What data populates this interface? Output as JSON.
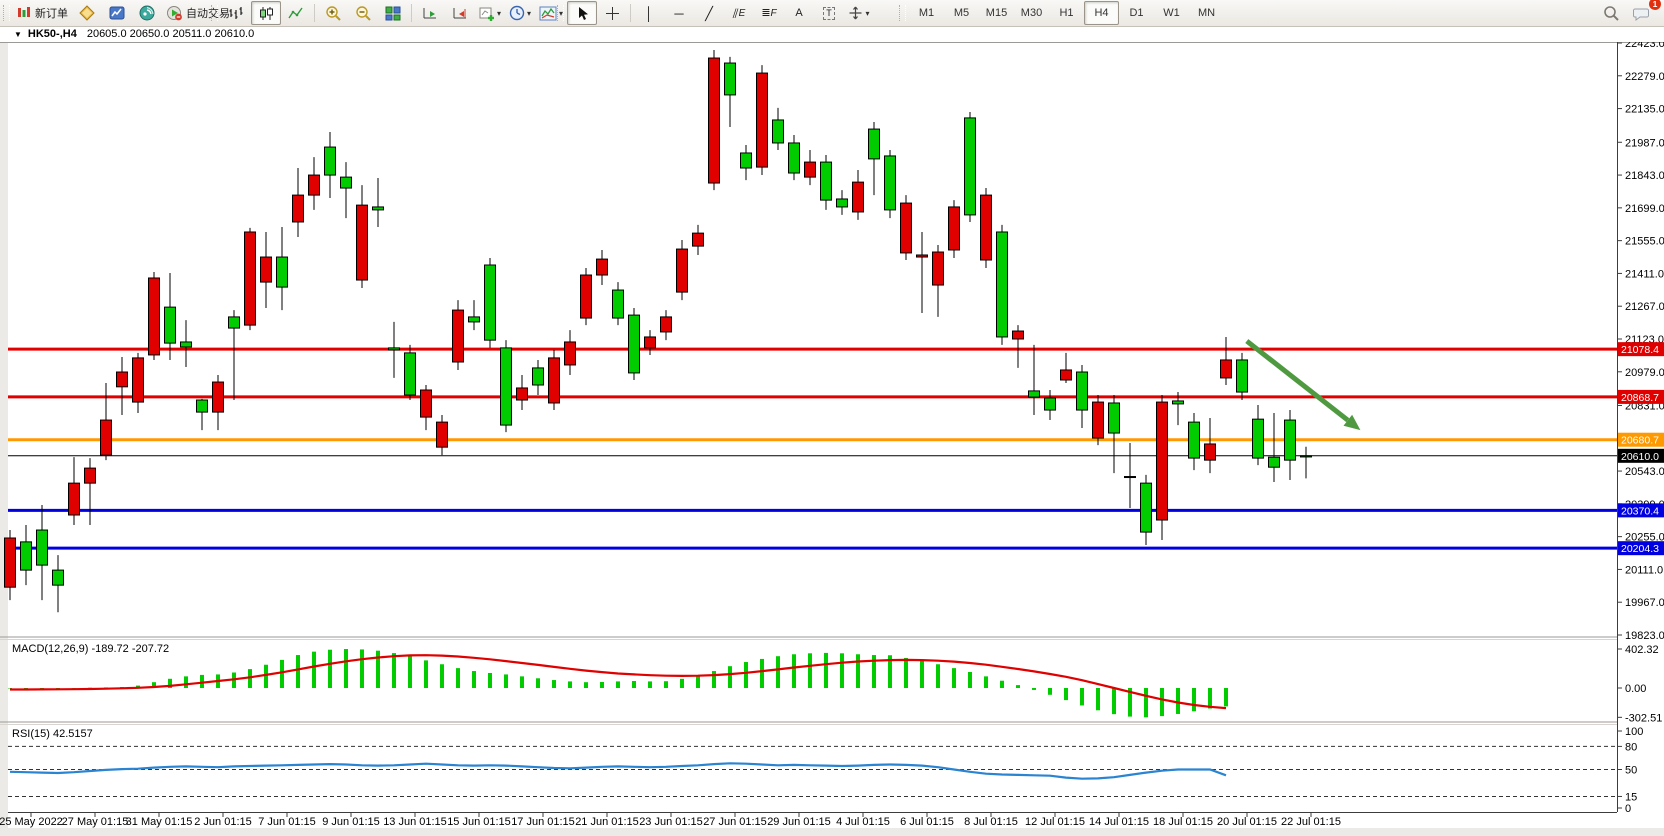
{
  "toolbar": {
    "new_order": "新订单",
    "autotrade": "自动交易",
    "timeframes": [
      "M1",
      "M5",
      "M15",
      "M30",
      "H1",
      "H4",
      "D1",
      "W1",
      "MN"
    ],
    "active_timeframe": "H4",
    "notification_count": "1",
    "glyphs": {
      "caret": "▾",
      "collapse": "▼",
      "crosshair": "┼",
      "vline": "│",
      "hline": "─",
      "trendline": "╱",
      "channel": "⫽",
      "channel_letter": "E",
      "fibo": "≣",
      "fibo_letter": "F",
      "text_tool": "A",
      "label_tool": "T"
    }
  },
  "chart_header": {
    "collapse_glyph": "▼",
    "symbol": "HK50-,H4",
    "ohlc": "20605.0 20650.0 20511.0 20610.0"
  },
  "chart_data": {
    "type": "candlestick",
    "symbol": "HK50-",
    "timeframe": "H4",
    "title": "HK50-,H4  20605.0 20650.0 20511.0 20610.0",
    "price_axis": {
      "min": 19823.0,
      "max": 22423.0,
      "ticks": [
        22423.0,
        22279.0,
        22135.0,
        21987.0,
        21843.0,
        21699.0,
        21555.0,
        21411.0,
        21267.0,
        21123.0,
        20979.0,
        20831.0,
        20687.0,
        20543.0,
        20399.0,
        20255.0,
        20111.0,
        19967.0,
        19823.0
      ]
    },
    "x_labels": [
      "25 May 2022",
      "27 May 01:15",
      "31 May 01:15",
      "2 Jun 01:15",
      "7 Jun 01:15",
      "9 Jun 01:15",
      "13 Jun 01:15",
      "15 Jun 01:15",
      "17 Jun 01:15",
      "21 Jun 01:15",
      "23 Jun 01:15",
      "27 Jun 01:15",
      "29 Jun 01:15",
      "4 Jul 01:15",
      "6 Jul 01:15",
      "8 Jul 01:15",
      "12 Jul 01:15",
      "14 Jul 01:15",
      "18 Jul 01:15",
      "20 Jul 01:15",
      "22 Jul 01:15"
    ],
    "colors": {
      "bull": "#00CC00",
      "bear": "#E00000",
      "wick": "#000000",
      "resistance": "#E00000",
      "orange_line": "#FF9900",
      "blue_line": "#0000E0",
      "current_price_line": "#000000",
      "macd_hist": "#00CC00",
      "macd_signal": "#E00000",
      "rsi_line": "#2A84D2",
      "arrow": "#4F9A41"
    },
    "h_lines": [
      {
        "price": 21078.4,
        "badge": "21078.4",
        "color": "#E00000",
        "width": 3
      },
      {
        "price": 20868.7,
        "badge": "20868.7",
        "color": "#E00000",
        "width": 3
      },
      {
        "price": 20680.7,
        "badge": "20680.7",
        "color": "#FF9900",
        "width": 3
      },
      {
        "price": 20370.4,
        "badge": "20370.4",
        "color": "#0000E0",
        "width": 3
      },
      {
        "price": 20204.3,
        "badge": "20204.3",
        "color": "#0000E0",
        "width": 3
      }
    ],
    "current_price": {
      "price": 20610.0,
      "badge": "20610.0",
      "color": "#000000"
    },
    "annotation_arrow": {
      "from_bar": 77.3,
      "from_price": 21114,
      "to_bar": 84.4,
      "to_price": 20723
    },
    "candles_ohlc": [
      [
        20249,
        20284,
        19976,
        20033
      ],
      [
        20108,
        20306,
        20042,
        20232
      ],
      [
        20130,
        20394,
        19976,
        20284
      ],
      [
        20042,
        20174,
        19923,
        20108
      ],
      [
        20490,
        20604,
        20306,
        20350
      ],
      [
        20556,
        20600,
        20306,
        20490
      ],
      [
        20767,
        20930,
        20591,
        20613
      ],
      [
        20978,
        21044,
        20789,
        20913
      ],
      [
        21040,
        21062,
        20798,
        20846
      ],
      [
        21391,
        21417,
        21031,
        21053
      ],
      [
        21105,
        21413,
        21031,
        21263
      ],
      [
        21088,
        21206,
        21000,
        21110
      ],
      [
        20802,
        20860,
        20723,
        20855
      ],
      [
        20934,
        20965,
        20723,
        20802
      ],
      [
        21171,
        21250,
        20855,
        21220
      ],
      [
        21593,
        21611,
        21162,
        21184
      ],
      [
        21483,
        21593,
        21259,
        21373
      ],
      [
        21351,
        21615,
        21250,
        21483
      ],
      [
        21755,
        21874,
        21571,
        21637
      ],
      [
        21843,
        21922,
        21690,
        21755
      ],
      [
        21843,
        22032,
        21742,
        21966
      ],
      [
        21786,
        21900,
        21654,
        21834
      ],
      [
        21711,
        21799,
        21347,
        21382
      ],
      [
        21690,
        21830,
        21615,
        21703
      ],
      [
        21075,
        21198,
        20952,
        21084
      ],
      [
        20877,
        21097,
        20855,
        21062
      ],
      [
        20899,
        20921,
        20723,
        20780
      ],
      [
        20758,
        20789,
        20613,
        20648
      ],
      [
        21250,
        21294,
        20987,
        21022
      ],
      [
        21198,
        21294,
        21162,
        21220
      ],
      [
        21118,
        21479,
        21084,
        21448
      ],
      [
        20745,
        21118,
        20714,
        21084
      ],
      [
        20908,
        20965,
        20811,
        20855
      ],
      [
        20921,
        21031,
        20877,
        20996
      ],
      [
        21040,
        21075,
        20811,
        20842
      ],
      [
        21110,
        21162,
        20965,
        21009
      ],
      [
        21404,
        21435,
        21184,
        21215
      ],
      [
        21474,
        21514,
        21360,
        21404
      ],
      [
        21215,
        21373,
        21184,
        21338
      ],
      [
        20974,
        21259,
        20943,
        21228
      ],
      [
        21132,
        21162,
        21053,
        21084
      ],
      [
        21220,
        21250,
        21118,
        21154
      ],
      [
        21518,
        21558,
        21294,
        21329
      ],
      [
        21588,
        21624,
        21492,
        21531
      ],
      [
        22357,
        22392,
        21777,
        21808
      ],
      [
        22195,
        22362,
        22054,
        22335
      ],
      [
        21874,
        21975,
        21821,
        21940
      ],
      [
        22291,
        22326,
        21843,
        21878
      ],
      [
        21984,
        22138,
        21953,
        22085
      ],
      [
        21852,
        22019,
        21821,
        21984
      ],
      [
        21900,
        21953,
        21799,
        21834
      ],
      [
        21733,
        21931,
        21690,
        21900
      ],
      [
        21703,
        21777,
        21668,
        21738
      ],
      [
        21812,
        21865,
        21646,
        21681
      ],
      [
        21914,
        22076,
        21755,
        22045
      ],
      [
        21690,
        21953,
        21654,
        21927
      ],
      [
        21720,
        21755,
        21470,
        21501
      ],
      [
        21492,
        21593,
        21237,
        21483
      ],
      [
        21505,
        21536,
        21220,
        21360
      ],
      [
        21703,
        21733,
        21479,
        21514
      ],
      [
        21668,
        22120,
        21637,
        22094
      ],
      [
        21755,
        21786,
        21435,
        21470
      ],
      [
        21132,
        21624,
        21097,
        21593
      ],
      [
        21158,
        21184,
        20996,
        21123
      ],
      [
        20868,
        21097,
        20789,
        20895
      ],
      [
        20811,
        20899,
        20767,
        20864
      ],
      [
        20987,
        21062,
        20930,
        20943
      ],
      [
        20811,
        21009,
        20732,
        20978
      ],
      [
        20846,
        20877,
        20657,
        20688
      ],
      [
        20710,
        20877,
        20534,
        20842
      ],
      [
        20517,
        20666,
        20381,
        20519
      ],
      [
        20275,
        20526,
        20218,
        20490
      ],
      [
        20846,
        20877,
        20240,
        20328
      ],
      [
        20838,
        20890,
        20745,
        20851
      ],
      [
        20600,
        20798,
        20547,
        20758
      ],
      [
        20662,
        20776,
        20534,
        20591
      ],
      [
        21031,
        21132,
        20921,
        20952
      ],
      [
        20890,
        21062,
        20855,
        21031
      ],
      [
        20600,
        20833,
        20569,
        20771
      ],
      [
        20560,
        20798,
        20495,
        20604
      ],
      [
        20591,
        20811,
        20504,
        20767
      ],
      [
        20605,
        20650,
        20511,
        20610
      ]
    ],
    "macd": {
      "label": "MACD(12,26,9) -189.72 -207.72",
      "axis_max": "402.32",
      "axis_zero": "0.00",
      "axis_min": "-302.51",
      "max_value": 402.32,
      "min_value": -302.51,
      "histogram": [
        -5,
        -8,
        -6,
        -10,
        -4,
        3,
        6,
        10,
        25,
        60,
        95,
        120,
        135,
        140,
        160,
        195,
        240,
        290,
        340,
        375,
        395,
        402,
        398,
        385,
        360,
        325,
        285,
        245,
        205,
        175,
        155,
        140,
        120,
        100,
        82,
        68,
        60,
        62,
        68,
        72,
        68,
        70,
        95,
        130,
        175,
        225,
        268,
        300,
        328,
        348,
        358,
        362,
        358,
        348,
        340,
        338,
        310,
        280,
        245,
        205,
        165,
        120,
        75,
        30,
        -20,
        -70,
        -125,
        -180,
        -230,
        -270,
        -295,
        -302.5,
        -290,
        -268,
        -240,
        -212,
        -189.7
      ],
      "signal": [
        -15,
        -15,
        -14,
        -13,
        -12,
        -10,
        -7,
        -3,
        2,
        10,
        22,
        38,
        55,
        72,
        90,
        110,
        135,
        162,
        192,
        222,
        250,
        275,
        297,
        315,
        328,
        336,
        338,
        334,
        325,
        312,
        296,
        278,
        258,
        238,
        218,
        198,
        180,
        164,
        150,
        140,
        132,
        127,
        125,
        127,
        133,
        143,
        157,
        174,
        192,
        211,
        229,
        246,
        261,
        273,
        282,
        288,
        290,
        288,
        282,
        272,
        258,
        240,
        219,
        196,
        171,
        144,
        116,
        80,
        40,
        0,
        -40,
        -80,
        -118,
        -150,
        -175,
        -194,
        -207.7
      ]
    },
    "rsi": {
      "label": "RSI(15) 42.5157",
      "axis_labels": [
        100,
        80,
        50,
        15,
        0
      ],
      "dashed_levels": [
        80,
        50,
        15
      ],
      "values": [
        47,
        46.5,
        46,
        45.5,
        46.5,
        48,
        49.5,
        50.5,
        51,
        52.5,
        53.5,
        54,
        53.5,
        53,
        54,
        54.5,
        55,
        55.5,
        56,
        56.5,
        57,
        56.5,
        55.5,
        55,
        55.5,
        56.5,
        57.5,
        56.5,
        55.5,
        55,
        55.5,
        55,
        54,
        53,
        52,
        51.5,
        52.5,
        53.5,
        54,
        53.5,
        53,
        53.5,
        54.5,
        55.5,
        57,
        58,
        57.5,
        56.5,
        55.5,
        56,
        55.5,
        55,
        54.5,
        55,
        56,
        56.5,
        56,
        55,
        53,
        50,
        47,
        44.5,
        43.5,
        43,
        42.5,
        42,
        39.5,
        38,
        38.5,
        40,
        43,
        46,
        48.5,
        50,
        50,
        50,
        42.5
      ]
    }
  }
}
